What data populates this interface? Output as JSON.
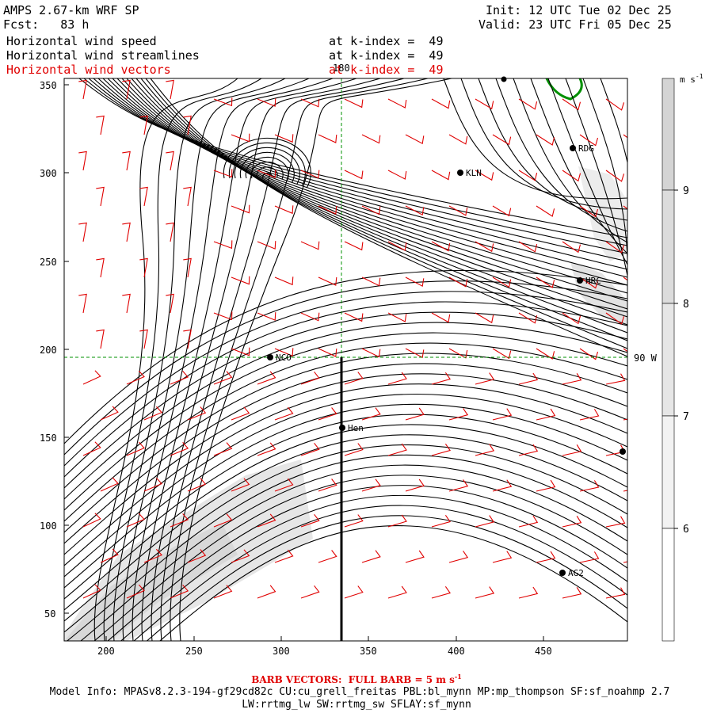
{
  "header": {
    "model": "AMPS 2.67-km WRF SP",
    "fcst": "Fcst:   83 h",
    "init": "Init: 12 UTC Tue 02 Dec 25",
    "valid": "Valid: 23 UTC Fri 05 Dec 25"
  },
  "fields": [
    {
      "name": "Horizontal wind speed",
      "level": "at k-index =  49",
      "color": "#000000"
    },
    {
      "name": "Horizontal wind streamlines",
      "level": "at k-index =  49",
      "color": "#000000"
    },
    {
      "name": "Horizontal wind vectors",
      "level": "at k-index =  49",
      "color": "#e00000"
    }
  ],
  "axes": {
    "x_ticks": [
      "200",
      "250",
      "300",
      "350",
      "400",
      "450"
    ],
    "y_ticks": [
      "350",
      "300",
      "250",
      "200",
      "150",
      "100",
      "50"
    ],
    "grid_labels": {
      "meridian": "180",
      "parallel": "90 W"
    }
  },
  "stations": [
    "NCO",
    "KLN",
    "RDG",
    "HRC",
    "Hen",
    "AG2"
  ],
  "colorbar": {
    "unit": "m s",
    "unit_exp": "-1",
    "ticks": [
      "9",
      "8",
      "7",
      "6"
    ],
    "colors": [
      "#d4d4d4",
      "#dcdcdc",
      "#e6e6e6",
      "#f2f2f2",
      "#ffffff"
    ]
  },
  "footer": {
    "barb_line": "BARB VECTORS:  FULL BARB = 5 m s",
    "barb_exp": "-1",
    "model_info": "Model Info: MPASv8.2.3-194-gf29cd82c CU:cu_grell_freitas PBL:bl_mynn MP:mp_thompson SF:sf_noahmp 2.7",
    "model_info2": "LW:rrtmg_lw SW:rrtmg_sw SFLAY:sf_mynn"
  }
}
